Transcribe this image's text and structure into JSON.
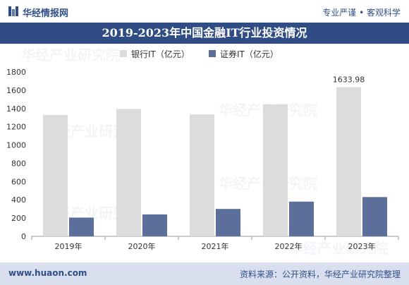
{
  "header": {
    "logo_text": "华经情报网",
    "slogan": "专业严谨 • 客观科学"
  },
  "footer": {
    "url": "www.huaon.com",
    "source": "资料来源：公开资料，华经产业研究院整理"
  },
  "watermark": "华经产业研究院",
  "colors": {
    "bank": "#dcdcdc",
    "securities": "#5b6f9a",
    "title_bg": "#2f4c85",
    "footer_bg": "#d9dfee"
  },
  "chart_data": {
    "type": "bar",
    "title": "2019-2023年中国金融IT行业投资情况",
    "categories": [
      "2019年",
      "2020年",
      "2021年",
      "2022年",
      "2023年"
    ],
    "series": [
      {
        "name": "银行IT（亿元）",
        "values": [
          1330,
          1395,
          1335,
          1445,
          1633.98
        ]
      },
      {
        "name": "证券IT（亿元）",
        "values": [
          205,
          240,
          300,
          380,
          430
        ]
      }
    ],
    "ylim": [
      0,
      1800
    ],
    "yticks": [
      0,
      200,
      400,
      600,
      800,
      1000,
      1200,
      1400,
      1600,
      1800
    ],
    "annotation": {
      "text": "1633.98"
    },
    "legend_position": "top"
  }
}
